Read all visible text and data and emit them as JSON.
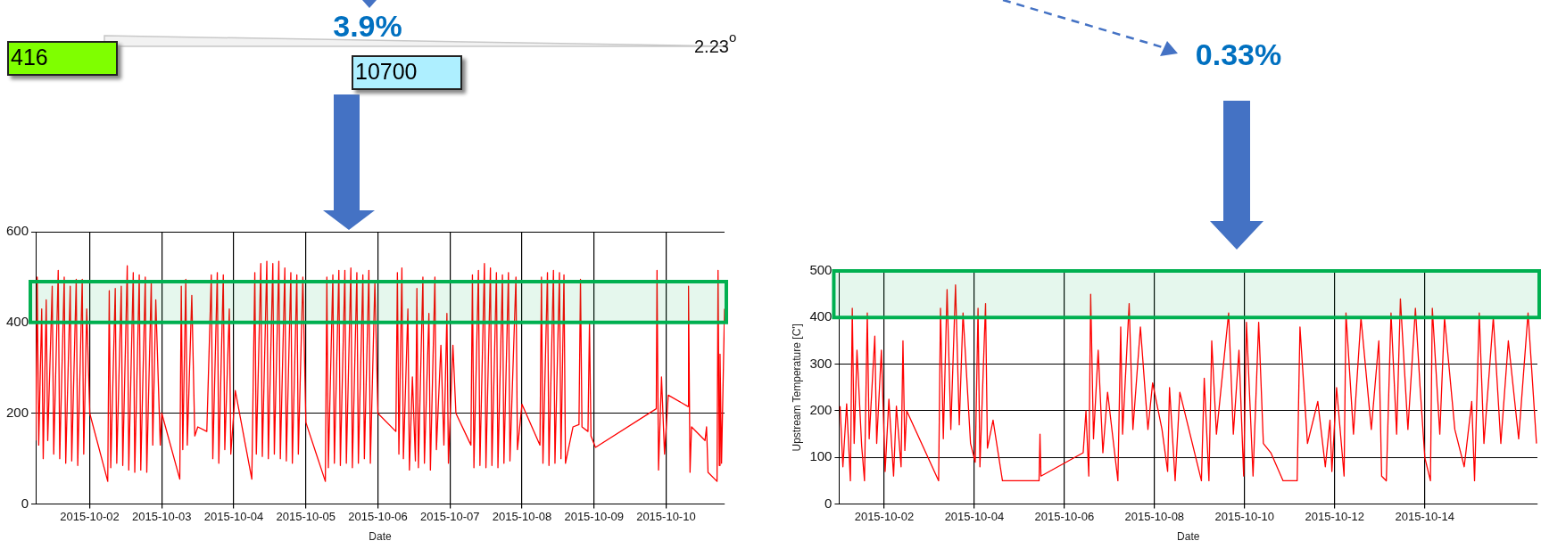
{
  "chart_data": [
    {
      "type": "line",
      "xlabel": "Date",
      "annotations": [
        "3.9%",
        "416",
        "10700",
        "2.23$^{o}$"
      ],
      "xlim": [
        "2015-10-01T06:00",
        "2015-10-10T19:30"
      ],
      "ylim": [
        0,
        600
      ],
      "yticks": [
        0,
        200,
        400,
        600
      ],
      "xticks": [
        "2015-10-02",
        "2015-10-03",
        "2015-10-04",
        "2015-10-05",
        "2015-10-06",
        "2015-10-07",
        "2015-10-08",
        "2015-10-09",
        "2015-10-10"
      ],
      "grid": true,
      "legend": false,
      "marker": "none",
      "line_style": "solid",
      "bands": [
        {
          "axis": "y",
          "from": 400,
          "to": 490,
          "color": "#00b050"
        }
      ],
      "series": [
        {
          "color": "#ff0000",
          "x": [
            "2015-10-01T06:00",
            "2015-10-01T06:30",
            "2015-10-01T07:00",
            "2015-10-01T08:00",
            "2015-10-01T08:30",
            "2015-10-01T09:30",
            "2015-10-01T10:00",
            "2015-10-01T11:30",
            "2015-10-01T12:00",
            "2015-10-01T13:30",
            "2015-10-01T14:00",
            "2015-10-01T15:30",
            "2015-10-01T16:00",
            "2015-10-01T17:30",
            "2015-10-01T18:00",
            "2015-10-01T19:30",
            "2015-10-01T20:00",
            "2015-10-01T21:30",
            "2015-10-01T22:00",
            "2015-10-01T23:00",
            "2015-10-02T00:00",
            "2015-10-02T06:00",
            "2015-10-02T06:30",
            "2015-10-02T07:00",
            "2015-10-02T08:30",
            "2015-10-02T09:00",
            "2015-10-02T10:30",
            "2015-10-02T11:00",
            "2015-10-02T12:30",
            "2015-10-02T13:00",
            "2015-10-02T14:30",
            "2015-10-02T15:00",
            "2015-10-02T16:30",
            "2015-10-02T17:00",
            "2015-10-02T18:30",
            "2015-10-02T19:00",
            "2015-10-02T20:30",
            "2015-10-02T21:00",
            "2015-10-02T22:00",
            "2015-10-02T23:30",
            "2015-10-03T00:00",
            "2015-10-03T06:00",
            "2015-10-03T06:30",
            "2015-10-03T07:00",
            "2015-10-03T08:00",
            "2015-10-03T08:30",
            "2015-10-03T10:00",
            "2015-10-03T11:00",
            "2015-10-03T12:00",
            "2015-10-03T15:00",
            "2015-10-03T16:30",
            "2015-10-03T17:00",
            "2015-10-03T18:30",
            "2015-10-03T19:00",
            "2015-10-03T20:30",
            "2015-10-03T21:00",
            "2015-10-03T22:30",
            "2015-10-03T23:00",
            "2015-10-04T00:30",
            "2015-10-04T06:00",
            "2015-10-04T07:00",
            "2015-10-04T07:30",
            "2015-10-04T09:00",
            "2015-10-04T09:30",
            "2015-10-04T11:00",
            "2015-10-04T11:30",
            "2015-10-04T13:00",
            "2015-10-04T13:30",
            "2015-10-04T15:00",
            "2015-10-04T15:30",
            "2015-10-04T17:00",
            "2015-10-04T17:30",
            "2015-10-04T19:00",
            "2015-10-04T19:30",
            "2015-10-04T21:00",
            "2015-10-04T21:30",
            "2015-10-04T23:00",
            "2015-10-05T00:00",
            "2015-10-05T06:30",
            "2015-10-05T07:00",
            "2015-10-05T07:30",
            "2015-10-05T09:00",
            "2015-10-05T09:30",
            "2015-10-05T11:00",
            "2015-10-05T11:30",
            "2015-10-05T13:00",
            "2015-10-05T13:30",
            "2015-10-05T15:00",
            "2015-10-05T15:30",
            "2015-10-05T17:00",
            "2015-10-05T17:30",
            "2015-10-05T19:00",
            "2015-10-05T19:30",
            "2015-10-05T21:00",
            "2015-10-05T21:30",
            "2015-10-05T23:00",
            "2015-10-06T00:00",
            "2015-10-06T06:00",
            "2015-10-06T06:30",
            "2015-10-06T07:00",
            "2015-10-06T08:00",
            "2015-10-06T08:30",
            "2015-10-06T10:00",
            "2015-10-06T10:30",
            "2015-10-06T11:30",
            "2015-10-06T12:30",
            "2015-10-06T13:00",
            "2015-10-06T13:30",
            "2015-10-06T15:00",
            "2015-10-06T15:30",
            "2015-10-06T17:00",
            "2015-10-06T17:30",
            "2015-10-06T19:00",
            "2015-10-06T19:30",
            "2015-10-06T21:00",
            "2015-10-06T22:00",
            "2015-10-06T23:00",
            "2015-10-06T23:30",
            "2015-10-07T01:00",
            "2015-10-07T02:00",
            "2015-10-07T07:00",
            "2015-10-07T07:30",
            "2015-10-07T08:00",
            "2015-10-07T09:30",
            "2015-10-07T10:00",
            "2015-10-07T11:30",
            "2015-10-07T12:00",
            "2015-10-07T13:30",
            "2015-10-07T14:00",
            "2015-10-07T15:30",
            "2015-10-07T16:00",
            "2015-10-07T17:30",
            "2015-10-07T18:00",
            "2015-10-07T19:30",
            "2015-10-07T20:00",
            "2015-10-07T22:00",
            "2015-10-07T22:30",
            "2015-10-08T00:00",
            "2015-10-08T06:00",
            "2015-10-08T06:30",
            "2015-10-08T07:00",
            "2015-10-08T08:30",
            "2015-10-08T09:00",
            "2015-10-08T10:30",
            "2015-10-08T11:00",
            "2015-10-08T12:30",
            "2015-10-08T13:00",
            "2015-10-08T14:00",
            "2015-10-08T14:30",
            "2015-10-08T17:00",
            "2015-10-08T19:00",
            "2015-10-08T19:30",
            "2015-10-08T20:00",
            "2015-10-08T22:00",
            "2015-10-08T22:30",
            "2015-10-08T23:00",
            "2015-10-09T00:30",
            "2015-10-09T20:45",
            "2015-10-09T21:00",
            "2015-10-09T21:30",
            "2015-10-09T22:30",
            "2015-10-09T23:30",
            "2015-10-10T00:45",
            "2015-10-10T07:20",
            "2015-10-10T07:30",
            "2015-10-10T08:00",
            "2015-10-10T08:30",
            "2015-10-10T13:00",
            "2015-10-10T13:30",
            "2015-10-10T14:00",
            "2015-10-10T17:00",
            "2015-10-10T17:20",
            "2015-10-10T17:45",
            "2015-10-10T18:00",
            "2015-10-10T18:30",
            "2015-10-10T19:30"
          ],
          "values": [
            140,
            500,
            130,
            430,
            100,
            450,
            140,
            480,
            110,
            515,
            100,
            500,
            90,
            480,
            95,
            495,
            85,
            495,
            110,
            430,
            200,
            50,
            470,
            80,
            475,
            90,
            480,
            85,
            525,
            75,
            510,
            70,
            505,
            75,
            500,
            70,
            490,
            130,
            450,
            130,
            200,
            55,
            480,
            120,
            495,
            130,
            460,
            150,
            170,
            160,
            505,
            100,
            510,
            90,
            505,
            120,
            430,
            110,
            250,
            55,
            510,
            110,
            530,
            105,
            535,
            100,
            530,
            110,
            535,
            100,
            520,
            95,
            510,
            90,
            505,
            110,
            500,
            180,
            50,
            500,
            80,
            505,
            90,
            515,
            85,
            515,
            90,
            520,
            80,
            510,
            90,
            505,
            100,
            515,
            90,
            490,
            200,
            160,
            510,
            110,
            520,
            100,
            430,
            75,
            280,
            95,
            475,
            80,
            500,
            90,
            420,
            75,
            500,
            120,
            350,
            130,
            420,
            90,
            350,
            200,
            130,
            505,
            80,
            515,
            85,
            530,
            80,
            520,
            85,
            510,
            80,
            505,
            90,
            510,
            95,
            500,
            120,
            220,
            130,
            500,
            90,
            510,
            85,
            515,
            90,
            510,
            100,
            505,
            90,
            170,
            175,
            495,
            170,
            160,
            400,
            150,
            125,
            210,
            515,
            75,
            280,
            110,
            240,
            215,
            480,
            70,
            170,
            140,
            170,
            70,
            50,
            515,
            85,
            330,
            90,
            430
          ]
        }
      ]
    },
    {
      "type": "line",
      "xlabel": "Date",
      "ylabel": "Upstream Temperature [C']",
      "annotations": [
        "0.33%"
      ],
      "xlim": [
        "2015-10-01T00:00",
        "2015-10-16T12:00"
      ],
      "ylim": [
        0,
        500
      ],
      "yticks": [
        0,
        100,
        200,
        300,
        400,
        500
      ],
      "xticks": [
        "2015-10-02",
        "2015-10-04",
        "2015-10-06",
        "2015-10-08",
        "2015-10-10",
        "2015-10-12",
        "2015-10-14"
      ],
      "grid": true,
      "legend": false,
      "marker": "none",
      "line_style": "solid",
      "bands": [
        {
          "axis": "y",
          "from": 400,
          "to": 500,
          "color": "#00b050"
        }
      ],
      "series": [
        {
          "color": "#ff0000",
          "x": [
            "2015-10-01T00:30",
            "2015-10-01T02:00",
            "2015-10-01T04:00",
            "2015-10-01T06:00",
            "2015-10-01T07:00",
            "2015-10-01T08:00",
            "2015-10-01T09:30",
            "2015-10-01T12:00",
            "2015-10-01T13:30",
            "2015-10-01T15:00",
            "2015-10-01T16:00",
            "2015-10-01T19:00",
            "2015-10-01T20:00",
            "2015-10-01T22:30",
            "2015-10-02T00:30",
            "2015-10-02T02:30",
            "2015-10-02T05:00",
            "2015-10-02T06:30",
            "2015-10-02T09:00",
            "2015-10-02T10:00",
            "2015-10-02T11:00",
            "2015-10-02T12:00",
            "2015-10-03T05:00",
            "2015-10-03T06:00",
            "2015-10-03T07:30",
            "2015-10-03T09:30",
            "2015-10-03T11:30",
            "2015-10-03T14:00",
            "2015-10-03T16:00",
            "2015-10-03T18:00",
            "2015-10-03T22:00",
            "2015-10-04T00:30",
            "2015-10-04T02:00",
            "2015-10-04T03:00",
            "2015-10-04T06:00",
            "2015-10-04T07:00",
            "2015-10-04T10:00",
            "2015-10-04T15:00",
            "2015-10-05T10:30",
            "2015-10-05T11:00",
            "2015-10-05T11:30",
            "2015-10-06T10:00",
            "2015-10-06T11:30",
            "2015-10-06T13:00",
            "2015-10-06T14:00",
            "2015-10-06T15:30",
            "2015-10-06T18:00",
            "2015-10-06T20:30",
            "2015-10-06T23:00",
            "2015-10-07T04:30",
            "2015-10-07T06:00",
            "2015-10-07T07:00",
            "2015-10-07T10:30",
            "2015-10-07T12:30",
            "2015-10-07T16:30",
            "2015-10-07T20:30",
            "2015-10-07T23:00",
            "2015-10-08T04:00",
            "2015-10-08T07:00",
            "2015-10-08T08:00",
            "2015-10-08T11:00",
            "2015-10-08T13:30",
            "2015-10-09T01:00",
            "2015-10-09T02:30",
            "2015-10-09T05:00",
            "2015-10-09T06:30",
            "2015-10-09T09:00",
            "2015-10-09T15:30",
            "2015-10-09T18:00",
            "2015-10-09T21:00",
            "2015-10-09T23:30",
            "2015-10-10T01:00",
            "2015-10-10T04:30",
            "2015-10-10T07:30",
            "2015-10-10T10:00",
            "2015-10-10T14:00",
            "2015-10-10T20:30",
            "2015-10-11T04:00",
            "2015-10-11T05:30",
            "2015-10-11T09:30",
            "2015-10-11T15:00",
            "2015-10-11T19:00",
            "2015-10-11T21:30",
            "2015-10-11T22:30",
            "2015-10-12T01:00",
            "2015-10-12T05:00",
            "2015-10-12T06:00",
            "2015-10-12T10:00",
            "2015-10-12T14:00",
            "2015-10-12T19:30",
            "2015-10-12T23:30",
            "2015-10-13T01:00",
            "2015-10-13T03:30",
            "2015-10-13T06:00",
            "2015-10-13T09:00",
            "2015-10-13T11:00",
            "2015-10-13T15:00",
            "2015-10-13T19:00",
            "2015-10-13T21:30",
            "2015-10-14T00:00",
            "2015-10-14T03:00",
            "2015-10-14T04:00",
            "2015-10-14T08:00",
            "2015-10-14T10:30",
            "2015-10-14T16:00",
            "2015-10-14T21:00",
            "2015-10-15T01:00",
            "2015-10-15T02:30",
            "2015-10-15T05:00",
            "2015-10-15T07:30",
            "2015-10-15T12:30",
            "2015-10-15T16:30",
            "2015-10-15T20:30",
            "2015-10-16T02:00",
            "2015-10-16T07:00",
            "2015-10-16T11:30"
          ],
          "values": [
            210,
            80,
            215,
            50,
            420,
            130,
            330,
            125,
            50,
            410,
            140,
            360,
            130,
            330,
            70,
            225,
            60,
            210,
            80,
            350,
            115,
            200,
            50,
            420,
            140,
            460,
            160,
            470,
            170,
            410,
            130,
            90,
            420,
            80,
            430,
            120,
            180,
            50,
            50,
            150,
            60,
            110,
            200,
            60,
            450,
            140,
            330,
            110,
            240,
            50,
            380,
            150,
            430,
            160,
            380,
            160,
            260,
            160,
            70,
            250,
            50,
            240,
            50,
            270,
            50,
            350,
            150,
            410,
            150,
            330,
            60,
            390,
            60,
            390,
            130,
            110,
            50,
            50,
            380,
            130,
            220,
            80,
            180,
            70,
            250,
            60,
            410,
            150,
            400,
            160,
            350,
            60,
            50,
            410,
            150,
            440,
            160,
            420,
            250,
            100,
            50,
            420,
            150,
            400,
            160,
            80,
            220,
            50,
            410,
            130,
            400,
            130,
            350,
            140,
            410,
            130
          ]
        }
      ]
    }
  ]
}
